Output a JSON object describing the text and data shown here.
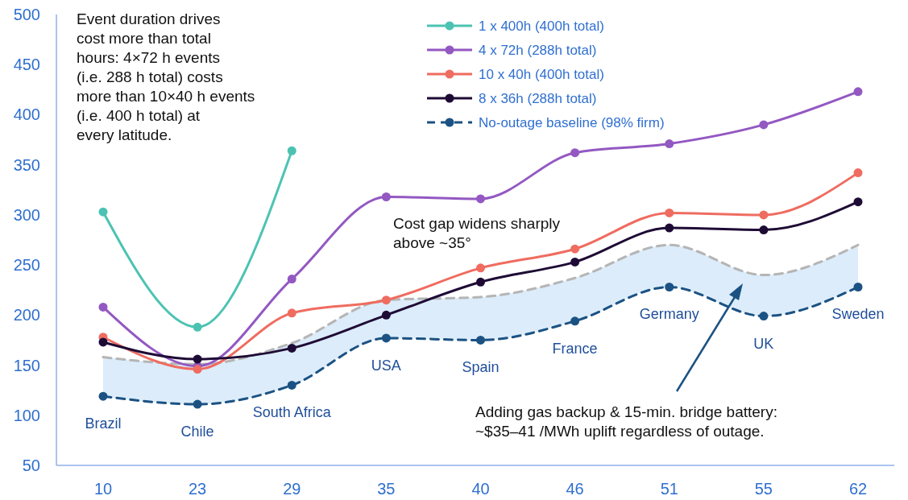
{
  "chart_data": {
    "type": "line",
    "categories": [
      "10",
      "23",
      "29",
      "35",
      "40",
      "46",
      "51",
      "55",
      "62"
    ],
    "ylim": [
      50,
      500
    ],
    "yticks": [
      50,
      100,
      150,
      200,
      250,
      300,
      350,
      400,
      450,
      500
    ],
    "legend": "top",
    "marker": "circle",
    "series": [
      {
        "color": "#b5b5b5",
        "line_style": "dashed",
        "marker": "none",
        "values": [
          158,
          151,
          172,
          215,
          218,
          237,
          270,
          240,
          270
        ]
      },
      {
        "name": "1 x 400h (400h total)",
        "color": "#4cc3b2",
        "values": [
          303,
          188,
          364,
          null,
          null,
          null,
          null,
          null,
          null
        ]
      },
      {
        "name": "4 x 72h (288h total)",
        "color": "#9358c2",
        "values": [
          208,
          149,
          236,
          318,
          316,
          362,
          371,
          390,
          423
        ]
      },
      {
        "name": "10 x 40h (400h total)",
        "color": "#ef6c60",
        "values": [
          178,
          146,
          202,
          215,
          247,
          266,
          302,
          300,
          342
        ]
      },
      {
        "name": "8 x 36h (288h total)",
        "color": "#1e0b35",
        "values": [
          173,
          156,
          167,
          200,
          233,
          253,
          287,
          285,
          313
        ]
      },
      {
        "name": "No-outage baseline (98% firm)",
        "color": "#1b5283",
        "line_style": "dashed",
        "values": [
          119,
          111,
          130,
          177,
          175,
          194,
          228,
          199,
          228
        ],
        "lower": [
          119,
          111,
          130,
          177,
          175,
          194,
          228,
          199,
          228
        ],
        "upper": [
          158,
          151,
          172,
          215,
          218,
          237,
          270,
          240,
          270
        ]
      }
    ],
    "annotations": [
      "Event duration drives cost more than total hours: 4×72 h events (i.e. 288 h total) costs more than 10×40 h events (i.e. 400 h total) at every latitude.",
      "Cost gap widens sharply above ~35°",
      "Adding gas backup & 15-min. bridge battery: ~$35–41 /MWh uplift regardless of outage.",
      {
        "text": "Brazil",
        "x": "10",
        "y": 119
      },
      {
        "text": "Chile",
        "x": "23",
        "y": 111
      },
      {
        "text": "South Africa",
        "x": "29",
        "y": 130
      },
      {
        "text": "USA",
        "x": "35",
        "y": 177
      },
      {
        "text": "Spain",
        "x": "40",
        "y": 175
      },
      {
        "text": "France",
        "x": "46",
        "y": 194
      },
      {
        "text": "Germany",
        "x": "51",
        "y": 228
      },
      {
        "text": "UK",
        "x": "55",
        "y": 199
      },
      {
        "text": "Sweden",
        "x": "62",
        "y": 228
      }
    ]
  }
}
